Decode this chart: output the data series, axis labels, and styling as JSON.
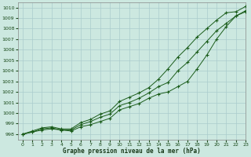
{
  "title": "Graphe pression niveau de la mer (hPa)",
  "background_color": "#cce8e0",
  "grid_color": "#aacccc",
  "line_color": "#1a5c1a",
  "xlim": [
    -0.5,
    23
  ],
  "ylim": [
    997.5,
    1010.5
  ],
  "yticks": [
    998,
    999,
    1000,
    1001,
    1002,
    1003,
    1004,
    1005,
    1006,
    1007,
    1008,
    1009,
    1010
  ],
  "xticks": [
    0,
    1,
    2,
    3,
    4,
    5,
    6,
    7,
    8,
    9,
    10,
    11,
    12,
    13,
    14,
    15,
    16,
    17,
    18,
    19,
    20,
    21,
    22,
    23
  ],
  "series": [
    [
      998.0,
      998.2,
      998.4,
      998.5,
      998.4,
      998.3,
      998.7,
      998.9,
      999.2,
      999.5,
      1000.3,
      1000.6,
      1000.9,
      1001.4,
      1001.8,
      1002.0,
      1002.5,
      1003.0,
      1004.2,
      1005.5,
      1007.0,
      1008.2,
      1009.2,
      1009.6
    ],
    [
      998.0,
      998.2,
      998.5,
      998.6,
      998.4,
      998.4,
      998.9,
      999.2,
      999.6,
      999.9,
      1000.7,
      1001.0,
      1001.4,
      1001.9,
      1002.5,
      1002.9,
      1004.0,
      1004.8,
      1005.8,
      1006.8,
      1007.8,
      1008.5,
      1009.2,
      1009.7
    ],
    [
      998.0,
      998.3,
      998.6,
      998.7,
      998.5,
      998.5,
      999.1,
      999.4,
      999.9,
      1000.2,
      1001.1,
      1001.5,
      1001.9,
      1002.4,
      1003.2,
      1004.2,
      1005.3,
      1006.2,
      1007.2,
      1008.0,
      1008.8,
      1009.5,
      1009.6,
      1010.1
    ]
  ]
}
